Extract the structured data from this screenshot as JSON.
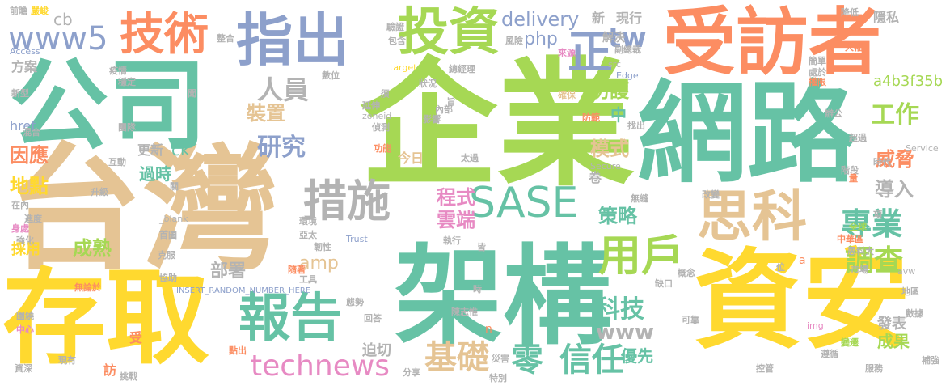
{
  "palette": {
    "green": "#a6d854",
    "teal": "#66c2a5",
    "orange": "#fc8d62",
    "blue": "#8da0cb",
    "pink": "#e78ac3",
    "yellow": "#ffd92f",
    "tan": "#e5c494",
    "gray": "#b3b3b3"
  },
  "words": {
    "w001": "企業",
    "w002": "網路",
    "w003": "台灣",
    "w004": "公司",
    "w005": "架構",
    "w006": "資安",
    "w007": "存取",
    "w008": "受訪者",
    "w009": "指出",
    "w010": "技術",
    "w011": "投資",
    "w012": "思科",
    "w013": "措施",
    "w014": "SASE",
    "w015": "報告",
    "w016": "用戶",
    "w017": "www5",
    "w018": "tw",
    "w019": "正",
    "w020": "technews",
    "w021": "零",
    "w022": "信任",
    "w023": "基礎",
    "w024": "專業",
    "w025": "調查",
    "w026": "工作",
    "w027": "科技",
    "w028": "www",
    "w029": "研究",
    "w030": "人員",
    "w031": "php",
    "w032": "delivery",
    "w033": "防護",
    "w034": "成熟",
    "w035": "部署",
    "w036": "amp",
    "w037": "裝置",
    "w038": "地點",
    "w039": "因應",
    "w040": "程式",
    "w041": "雲端",
    "w042": "策略",
    "w043": "模式",
    "w044": "威脅",
    "w045": "導入",
    "w046": "a4b3f35b",
    "w047": "中",
    "w048": "cb",
    "w049": "href",
    "w050": "ck",
    "w051": "過時",
    "w052": "優先",
    "w053": "成果",
    "w054": "發表",
    "w055": "迫切",
    "w056": "今日",
    "w057": "更新",
    "w058": "現行",
    "w059": "新",
    "w060": "隱私",
    "w061": "解決",
    "w062": "方案",
    "w063": "採用",
    "w064": "卷",
    "w065": "受",
    "w066": "訪",
    "w067": "a",
    "w068": "n",
    "w069": "嚴峻",
    "w070": "前瞻",
    "w071": "整合",
    "w072": "驗證",
    "w073": "包含",
    "w074": "風險",
    "w075": "src",
    "w076": "降低",
    "w077": "大幅",
    "w078": "Access",
    "w079": "疫情",
    "w080": "穩定",
    "w081": "數位",
    "w082": "target",
    "w083": "狀況",
    "w084": "來源",
    "w085": "總經理",
    "w086": "副總裁",
    "w087": "Edge",
    "w088": "簡單",
    "w089": "處於",
    "w090": "權限",
    "w091": "新型",
    "w092": "混合",
    "w093": "團隊",
    "w094": "互動",
    "w095": "升級",
    "w096": "在內",
    "w097": "進度",
    "w098": "身處",
    "w099": "強化",
    "w100": "延伸",
    "w101": "zoneid",
    "w102": "偵測",
    "w103": "影響",
    "w104": "內部",
    "w105": "功能",
    "w106": "太過",
    "w107": "確保",
    "w108": "防範",
    "w109": "找出",
    "w110": "辦公",
    "w111": "超過",
    "w112": "時代",
    "w113": "Service",
    "w114": "Secure",
    "w115": "階段",
    "w116": "量",
    "w117": "_blank",
    "w118": "關",
    "w119": "無縫",
    "w120": "改變",
    "w121": "環境",
    "w122": "首圖",
    "w123": "克服",
    "w124": "亞太",
    "w125": "韌性",
    "w126": "Trust",
    "w127": "執行",
    "w128": "皆",
    "w129": "全球",
    "w130": "項",
    "w131": "中華區",
    "w132": "思科大",
    "w133": "協助",
    "w134": "INSERT_RANDOM_NUMBER_HERE",
    "w135": "隨著",
    "w136": "工具",
    "w137": "概念",
    "w138": "缺口",
    "w139": "位",
    "w140": "市場",
    "w141": "avw",
    "w142": "無論於",
    "w143": "陳志惟",
    "w144": "態勢",
    "w145": "地區",
    "w146": "時",
    "w147": "圍繞",
    "w148": "中心",
    "w149": "回答",
    "w150": "可靠",
    "w151": "img",
    "w152": "數據",
    "w153": "遵循",
    "w154": "變遷",
    "w155": "點出",
    "w156": "災害",
    "w157": "現有",
    "w158": "資深",
    "w159": "挑戰",
    "w160": "分享",
    "w161": "特別",
    "w162": "控管",
    "w163": "服務",
    "w164": "補強",
    "w165": "須",
    "w166": "旨",
    "w167": "聞"
  }
}
